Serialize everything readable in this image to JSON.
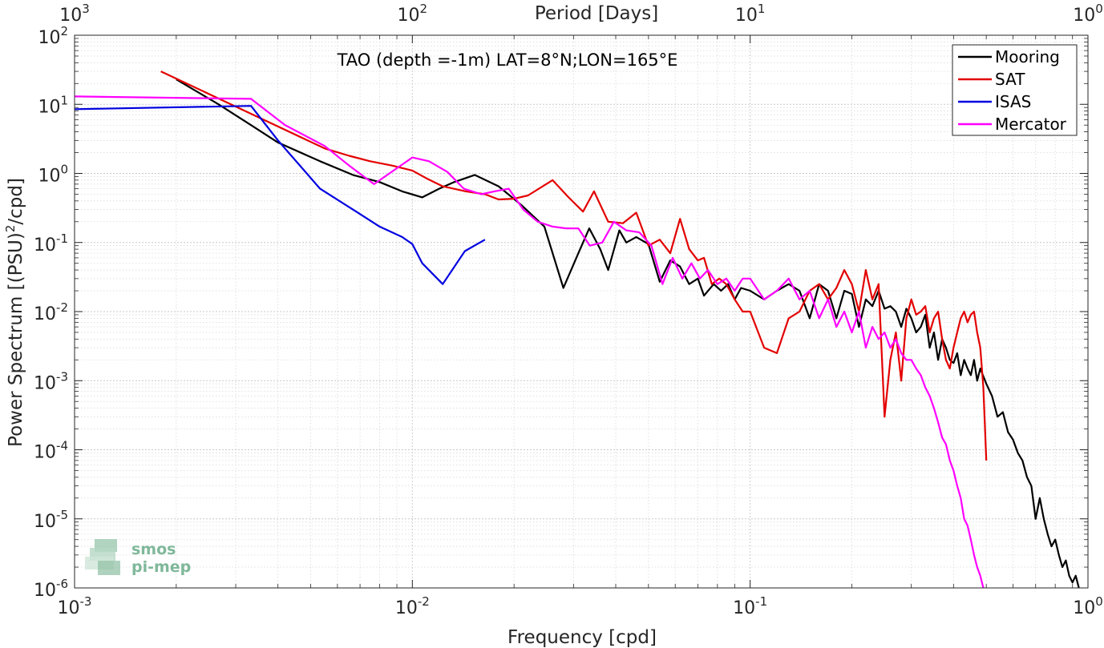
{
  "chart_data": {
    "type": "line",
    "xscale": "log",
    "yscale": "log",
    "xlim": [
      0.001,
      1
    ],
    "ylim": [
      1e-06,
      100
    ],
    "grid": true,
    "minor_grid": true,
    "xlabel": "Frequency [cpd]",
    "ylabel_parts": {
      "pre": "Power Spectrum [(PSU)",
      "sup": "2",
      "post": "/cpd]"
    },
    "top_axis_label": "Period [Days]",
    "annotation": "TAO (depth =-1m) LAT=8°N;LON=165°E",
    "legend_position": "top-right",
    "x_ticks": [
      {
        "value": 0.001,
        "base": "10",
        "exp": "-3"
      },
      {
        "value": 0.01,
        "base": "10",
        "exp": "-2"
      },
      {
        "value": 0.1,
        "base": "10",
        "exp": "-1"
      },
      {
        "value": 1,
        "base": "10",
        "exp": "0"
      }
    ],
    "top_ticks": [
      {
        "value": 0.001,
        "base": "10",
        "exp": "3"
      },
      {
        "value": 0.01,
        "base": "10",
        "exp": "2"
      },
      {
        "value": 0.1,
        "base": "10",
        "exp": "1"
      },
      {
        "value": 1,
        "base": "10",
        "exp": "0"
      }
    ],
    "y_ticks": [
      {
        "value": 100,
        "base": "10",
        "exp": "2"
      },
      {
        "value": 10,
        "base": "10",
        "exp": "1"
      },
      {
        "value": 1,
        "base": "10",
        "exp": "0"
      },
      {
        "value": 0.1,
        "base": "10",
        "exp": "-1"
      },
      {
        "value": 0.01,
        "base": "10",
        "exp": "-2"
      },
      {
        "value": 0.001,
        "base": "10",
        "exp": "-3"
      },
      {
        "value": 0.0001,
        "base": "10",
        "exp": "-4"
      },
      {
        "value": 1e-05,
        "base": "10",
        "exp": "-5"
      },
      {
        "value": 1e-06,
        "base": "10",
        "exp": "-6"
      }
    ],
    "series": [
      {
        "name": "Mooring",
        "color": "#000000",
        "x": [
          0.002,
          0.00267,
          0.00333,
          0.004,
          0.00533,
          0.00667,
          0.008,
          0.00933,
          0.0107,
          0.012,
          0.0133,
          0.0153,
          0.018,
          0.021,
          0.0246,
          0.028,
          0.031,
          0.0334,
          0.036,
          0.038,
          0.041,
          0.043,
          0.046,
          0.05,
          0.054,
          0.058,
          0.062,
          0.066,
          0.07,
          0.073,
          0.078,
          0.082,
          0.086,
          0.09,
          0.094,
          0.1,
          0.11,
          0.12,
          0.13,
          0.14,
          0.15,
          0.16,
          0.17,
          0.18,
          0.19,
          0.2,
          0.21,
          0.22,
          0.23,
          0.24,
          0.25,
          0.26,
          0.27,
          0.28,
          0.29,
          0.3,
          0.31,
          0.32,
          0.33,
          0.34,
          0.35,
          0.36,
          0.37,
          0.38,
          0.39,
          0.4,
          0.41,
          0.42,
          0.43,
          0.44,
          0.45,
          0.46,
          0.47,
          0.48,
          0.5,
          0.52,
          0.54,
          0.56,
          0.58,
          0.6,
          0.62,
          0.64,
          0.66,
          0.68,
          0.7,
          0.72,
          0.74,
          0.76,
          0.78,
          0.8,
          0.82,
          0.84,
          0.86,
          0.88,
          0.9,
          0.92,
          0.94
        ],
        "y": [
          23,
          10,
          5,
          2.8,
          1.5,
          0.95,
          0.75,
          0.55,
          0.45,
          0.6,
          0.75,
          0.95,
          0.65,
          0.35,
          0.17,
          0.022,
          0.07,
          0.16,
          0.08,
          0.04,
          0.15,
          0.1,
          0.12,
          0.095,
          0.027,
          0.055,
          0.045,
          0.025,
          0.03,
          0.017,
          0.025,
          0.02,
          0.025,
          0.015,
          0.022,
          0.02,
          0.015,
          0.02,
          0.025,
          0.02,
          0.008,
          0.025,
          0.02,
          0.008,
          0.02,
          0.018,
          0.006,
          0.015,
          0.012,
          0.02,
          0.011,
          0.012,
          0.01,
          0.006,
          0.011,
          0.008,
          0.005,
          0.006,
          0.009,
          0.003,
          0.005,
          0.002,
          0.004,
          0.003,
          0.002,
          0.0018,
          0.0025,
          0.0012,
          0.002,
          0.0015,
          0.0012,
          0.002,
          0.001,
          0.0015,
          0.0009,
          0.0006,
          0.0003,
          0.00035,
          0.00018,
          0.00014,
          9e-05,
          7e-05,
          4e-05,
          3e-05,
          1e-05,
          2e-05,
          1e-05,
          6e-06,
          4e-06,
          5e-06,
          3e-06,
          2e-06,
          2.5e-06,
          1.5e-06,
          1.2e-06,
          1.5e-06,
          1e-06
        ]
      },
      {
        "name": "SAT",
        "color": "#e30000",
        "x": [
          0.0018,
          0.0032,
          0.0055,
          0.0065,
          0.0075,
          0.0087,
          0.01,
          0.011,
          0.0123,
          0.0144,
          0.0164,
          0.018,
          0.02,
          0.022,
          0.026,
          0.029,
          0.032,
          0.0345,
          0.038,
          0.042,
          0.046,
          0.05,
          0.054,
          0.058,
          0.062,
          0.066,
          0.07,
          0.073,
          0.077,
          0.081,
          0.085,
          0.09,
          0.095,
          0.1,
          0.11,
          0.12,
          0.13,
          0.14,
          0.15,
          0.16,
          0.17,
          0.18,
          0.19,
          0.2,
          0.21,
          0.22,
          0.23,
          0.24,
          0.25,
          0.26,
          0.27,
          0.28,
          0.29,
          0.3,
          0.31,
          0.32,
          0.33,
          0.34,
          0.35,
          0.36,
          0.37,
          0.38,
          0.39,
          0.4,
          0.41,
          0.42,
          0.43,
          0.44,
          0.45,
          0.46,
          0.47,
          0.48,
          0.49,
          0.5
        ],
        "y": [
          30,
          8,
          2.3,
          1.8,
          1.5,
          1.3,
          1.1,
          0.85,
          0.65,
          0.55,
          0.5,
          0.42,
          0.43,
          0.48,
          0.8,
          0.45,
          0.28,
          0.55,
          0.2,
          0.19,
          0.27,
          0.09,
          0.11,
          0.07,
          0.22,
          0.08,
          0.055,
          0.06,
          0.025,
          0.03,
          0.025,
          0.015,
          0.01,
          0.01,
          0.003,
          0.0025,
          0.008,
          0.01,
          0.02,
          0.025,
          0.015,
          0.022,
          0.04,
          0.025,
          0.01,
          0.04,
          0.015,
          0.025,
          0.0003,
          0.002,
          0.005,
          0.001,
          0.008,
          0.015,
          0.009,
          0.01,
          0.012,
          0.005,
          0.008,
          0.01,
          0.004,
          0.002,
          0.0015,
          0.003,
          0.005,
          0.008,
          0.01,
          0.007,
          0.009,
          0.01,
          0.005,
          0.003,
          0.0008,
          7e-05
        ]
      },
      {
        "name": "ISAS",
        "color": "#0000e0",
        "x": [
          0.001,
          0.00333,
          0.004,
          0.00533,
          0.00667,
          0.008,
          0.00933,
          0.01,
          0.0107,
          0.0123,
          0.0143,
          0.0164
        ],
        "y": [
          8.5,
          9.5,
          3,
          0.6,
          0.3,
          0.17,
          0.12,
          0.095,
          0.05,
          0.025,
          0.075,
          0.11
        ]
      },
      {
        "name": "Mercator",
        "color": "#ff00ff",
        "x": [
          0.001,
          0.00333,
          0.0042,
          0.0055,
          0.0065,
          0.0077,
          0.0088,
          0.01,
          0.0112,
          0.0127,
          0.0142,
          0.016,
          0.0175,
          0.0193,
          0.0213,
          0.0235,
          0.026,
          0.0285,
          0.031,
          0.0335,
          0.0365,
          0.0395,
          0.043,
          0.047,
          0.051,
          0.055,
          0.059,
          0.063,
          0.067,
          0.071,
          0.075,
          0.08,
          0.085,
          0.09,
          0.095,
          0.1,
          0.11,
          0.12,
          0.13,
          0.14,
          0.15,
          0.16,
          0.17,
          0.18,
          0.19,
          0.2,
          0.21,
          0.22,
          0.23,
          0.24,
          0.25,
          0.26,
          0.27,
          0.28,
          0.29,
          0.3,
          0.31,
          0.32,
          0.33,
          0.34,
          0.35,
          0.36,
          0.37,
          0.38,
          0.39,
          0.4,
          0.41,
          0.42,
          0.43,
          0.44,
          0.45,
          0.46,
          0.47,
          0.48,
          0.49
        ],
        "y": [
          13,
          12,
          5,
          2.5,
          1.3,
          0.7,
          1.1,
          1.7,
          1.5,
          1.05,
          0.6,
          0.5,
          0.55,
          0.6,
          0.3,
          0.2,
          0.17,
          0.16,
          0.16,
          0.09,
          0.1,
          0.2,
          0.15,
          0.14,
          0.09,
          0.025,
          0.06,
          0.03,
          0.05,
          0.03,
          0.04,
          0.025,
          0.03,
          0.02,
          0.03,
          0.03,
          0.015,
          0.02,
          0.03,
          0.015,
          0.02,
          0.008,
          0.015,
          0.006,
          0.01,
          0.005,
          0.01,
          0.003,
          0.006,
          0.004,
          0.005,
          0.003,
          0.004,
          0.0025,
          0.002,
          0.002,
          0.0015,
          0.0012,
          0.0008,
          0.0006,
          0.0004,
          0.00025,
          0.00015,
          0.00012,
          7e-05,
          5e-05,
          3e-05,
          2e-05,
          1e-05,
          8e-06,
          5e-06,
          3e-06,
          2e-06,
          1.5e-06,
          1e-06
        ]
      }
    ]
  },
  "logo": {
    "line1": "smos",
    "line2": "pi-mep"
  }
}
